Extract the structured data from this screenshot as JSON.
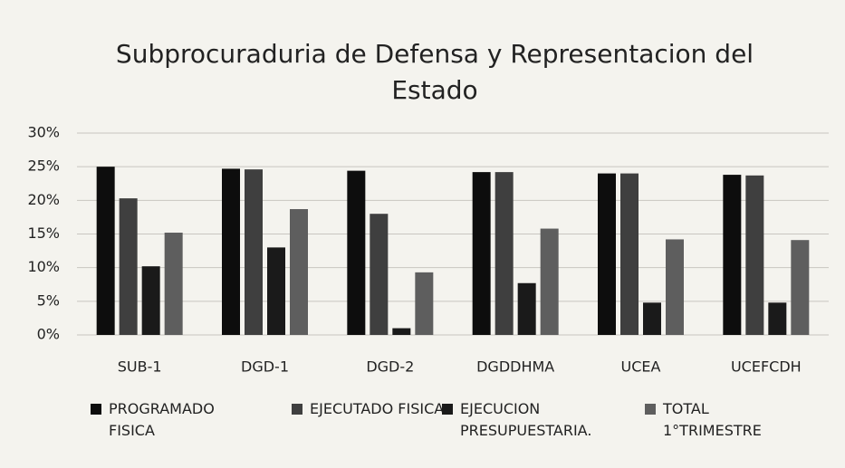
{
  "chart_data": {
    "type": "bar",
    "title": "Subprocuraduria  de Defensa y Representacion del Estado",
    "categories": [
      "SUB-1",
      "DGD-1",
      "DGD-2",
      "DGDDHMA",
      "UCEA",
      "UCEFCDH"
    ],
    "series": [
      {
        "name": "PROGRAMADO FISICA",
        "color": "#0d0d0d",
        "values": [
          25,
          24.7,
          24.4,
          24.2,
          24,
          23.8
        ]
      },
      {
        "name": "EJECUTADO FISICA",
        "color": "#3f3f3f",
        "values": [
          20.3,
          24.6,
          18,
          24.2,
          24,
          23.7
        ]
      },
      {
        "name": "EJECUCION PRESUPUESTARIA.",
        "color": "#1a1a1a",
        "values": [
          10.2,
          13,
          1,
          7.7,
          4.8,
          4.8
        ]
      },
      {
        "name": "TOTAL 1°TRIMESTRE",
        "color": "#5e5e5e",
        "values": [
          15.2,
          18.7,
          9.3,
          15.8,
          14.2,
          14.1
        ]
      }
    ],
    "ylim": [
      0,
      30
    ],
    "yticks": [
      {
        "value": 0,
        "label": "0%"
      },
      {
        "value": 5,
        "label": "5%"
      },
      {
        "value": 10,
        "label": "10%"
      },
      {
        "value": 15,
        "label": "15%"
      },
      {
        "value": 20,
        "label": "20%"
      },
      {
        "value": 25,
        "label": "25%"
      },
      {
        "value": 30,
        "label": "30%"
      }
    ],
    "grid": true
  }
}
